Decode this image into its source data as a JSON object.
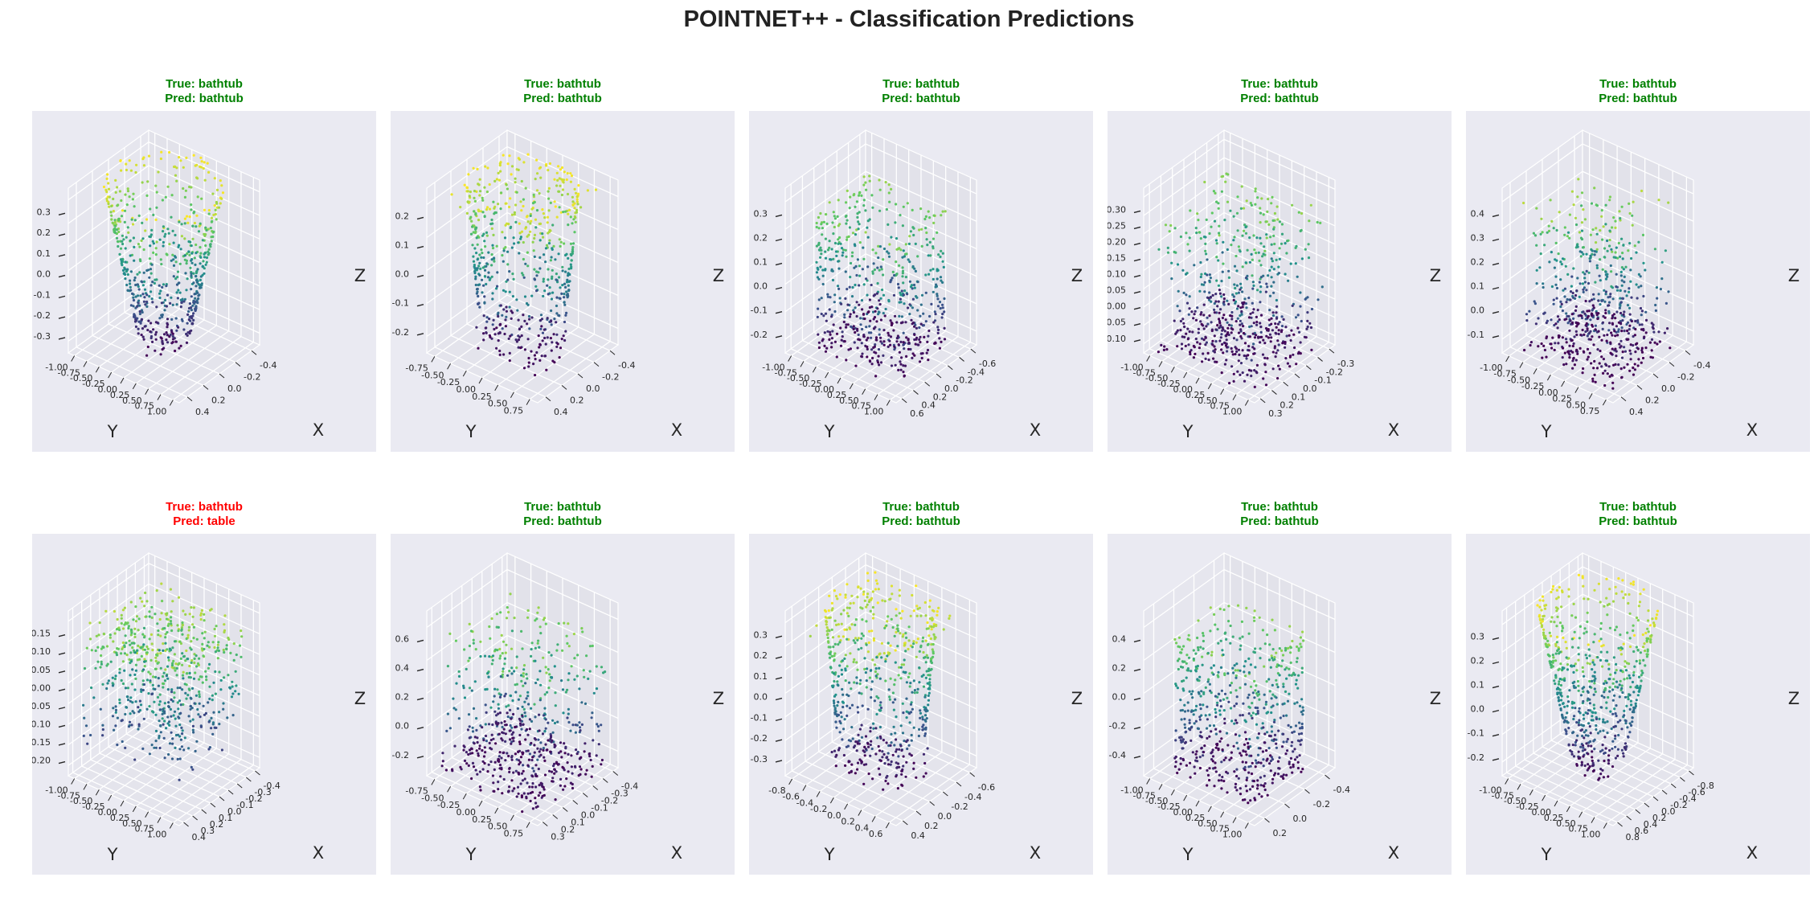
{
  "figure": {
    "title": "POINTNET++ - Classification Predictions",
    "colors": {
      "correct": "#008000",
      "wrong": "#ff0000",
      "pane": "#eaeaf2",
      "colormap": "viridis"
    }
  },
  "chart_data": [
    {
      "type": "scatter3d",
      "true_label": "True: bathtub",
      "pred_label": "Pred: bathtub",
      "correct": true,
      "shape": "bowl",
      "xlabel": "X",
      "ylabel": "Y",
      "zlabel": "Z",
      "x_ticks": [
        "0.4",
        "0.2",
        "0.0",
        "-0.2",
        "-0.4"
      ],
      "y_ticks": [
        "-1.00",
        "-0.75",
        "-0.50",
        "-0.25",
        "0.00",
        "0.25",
        "0.50",
        "0.75",
        "1.00"
      ],
      "z_ticks": [
        "0.3",
        "0.2",
        "0.1",
        "0.0",
        "-0.1",
        "-0.2",
        "-0.3"
      ]
    },
    {
      "type": "scatter3d",
      "true_label": "True: bathtub",
      "pred_label": "Pred: bathtub",
      "correct": true,
      "shape": "tub",
      "xlabel": "X",
      "ylabel": "Y",
      "zlabel": "Z",
      "x_ticks": [
        "0.4",
        "0.2",
        "0.0",
        "-0.2",
        "-0.4"
      ],
      "y_ticks": [
        "-0.75",
        "-0.50",
        "-0.25",
        "0.00",
        "0.25",
        "0.50",
        "0.75"
      ],
      "z_ticks": [
        "0.2",
        "0.1",
        "0.0",
        "-0.1",
        "-0.2"
      ]
    },
    {
      "type": "scatter3d",
      "true_label": "True: bathtub",
      "pred_label": "Pred: bathtub",
      "correct": true,
      "shape": "box",
      "xlabel": "X",
      "ylabel": "Y",
      "zlabel": "Z",
      "x_ticks": [
        "0.6",
        "0.4",
        "0.2",
        "0.0",
        "-0.2",
        "-0.4",
        "-0.6"
      ],
      "y_ticks": [
        "-1.00",
        "-0.75",
        "-0.50",
        "-0.25",
        "0.00",
        "0.25",
        "0.50",
        "0.75",
        "1.00"
      ],
      "z_ticks": [
        "0.3",
        "0.2",
        "0.1",
        "0.0",
        "-0.1",
        "-0.2"
      ]
    },
    {
      "type": "scatter3d",
      "true_label": "True: bathtub",
      "pred_label": "Pred: bathtub",
      "correct": true,
      "shape": "wide",
      "xlabel": "X",
      "ylabel": "Y",
      "zlabel": "Z",
      "x_ticks": [
        "0.3",
        "0.2",
        "0.1",
        "0.0",
        "-0.1",
        "-0.2",
        "-0.3"
      ],
      "y_ticks": [
        "-1.00",
        "-0.75",
        "-0.50",
        "-0.25",
        "0.00",
        "0.25",
        "0.50",
        "0.75",
        "1.00"
      ],
      "z_ticks": [
        "0.30",
        "0.25",
        "0.20",
        "0.15",
        "0.10",
        "0.05",
        "0.00",
        "-0.05",
        "-0.10"
      ]
    },
    {
      "type": "scatter3d",
      "true_label": "True: bathtub",
      "pred_label": "Pred: bathtub",
      "correct": true,
      "shape": "flat",
      "xlabel": "X",
      "ylabel": "Y",
      "zlabel": "Z",
      "x_ticks": [
        "0.4",
        "0.2",
        "0.0",
        "-0.2",
        "-0.4"
      ],
      "y_ticks": [
        "-1.00",
        "-0.75",
        "-0.50",
        "-0.25",
        "0.00",
        "0.25",
        "0.50",
        "0.75"
      ],
      "z_ticks": [
        "0.4",
        "0.3",
        "0.2",
        "0.1",
        "0.0",
        "-0.1"
      ]
    },
    {
      "type": "scatter3d",
      "true_label": "True: bathtub",
      "pred_label": "Pred: table",
      "correct": false,
      "shape": "slab",
      "xlabel": "X",
      "ylabel": "Y",
      "zlabel": "Z",
      "x_ticks": [
        "0.4",
        "0.3",
        "0.2",
        "0.1",
        "0.0",
        "-0.1",
        "-0.2",
        "-0.3",
        "-0.4"
      ],
      "y_ticks": [
        "-1.00",
        "-0.75",
        "-0.50",
        "-0.25",
        "0.00",
        "0.25",
        "0.50",
        "0.75",
        "1.00"
      ],
      "z_ticks": [
        "0.15",
        "0.10",
        "0.05",
        "0.00",
        "-0.05",
        "-0.10",
        "-0.15",
        "-0.20"
      ]
    },
    {
      "type": "scatter3d",
      "true_label": "True: bathtub",
      "pred_label": "Pred: bathtub",
      "correct": true,
      "shape": "wide",
      "xlabel": "X",
      "ylabel": "Y",
      "zlabel": "Z",
      "x_ticks": [
        "0.3",
        "0.2",
        "0.1",
        "0.0",
        "-0.1",
        "-0.2",
        "-0.3",
        "-0.4"
      ],
      "y_ticks": [
        "-0.75",
        "-0.50",
        "-0.25",
        "0.00",
        "0.25",
        "0.50",
        "0.75"
      ],
      "z_ticks": [
        "0.6",
        "0.4",
        "0.2",
        "0.0",
        "-0.2"
      ]
    },
    {
      "type": "scatter3d",
      "true_label": "True: bathtub",
      "pred_label": "Pred: bathtub",
      "correct": true,
      "shape": "tub",
      "xlabel": "X",
      "ylabel": "Y",
      "zlabel": "Z",
      "x_ticks": [
        "0.4",
        "0.2",
        "0.0",
        "-0.2",
        "-0.4",
        "-0.6"
      ],
      "y_ticks": [
        "-0.8",
        "-0.6",
        "-0.4",
        "-0.2",
        "0.0",
        "0.2",
        "0.4",
        "0.6"
      ],
      "z_ticks": [
        "0.3",
        "0.2",
        "0.1",
        "0.0",
        "-0.1",
        "-0.2",
        "-0.3"
      ]
    },
    {
      "type": "scatter3d",
      "true_label": "True: bathtub",
      "pred_label": "Pred: bathtub",
      "correct": true,
      "shape": "box",
      "xlabel": "X",
      "ylabel": "Y",
      "zlabel": "Z",
      "x_ticks": [
        "0.2",
        "0.0",
        "-0.2",
        "-0.4"
      ],
      "y_ticks": [
        "-1.00",
        "-0.75",
        "-0.50",
        "-0.25",
        "0.00",
        "0.25",
        "0.50",
        "0.75",
        "1.00"
      ],
      "z_ticks": [
        "0.4",
        "0.2",
        "0.0",
        "-0.2",
        "-0.4"
      ]
    },
    {
      "type": "scatter3d",
      "true_label": "True: bathtub",
      "pred_label": "Pred: bathtub",
      "correct": true,
      "shape": "bowl",
      "xlabel": "X",
      "ylabel": "Y",
      "zlabel": "Z",
      "x_ticks": [
        "0.8",
        "0.6",
        "0.4",
        "0.2",
        "0.0",
        "-0.2",
        "-0.4",
        "-0.6",
        "-0.8"
      ],
      "y_ticks": [
        "-1.00",
        "-0.75",
        "-0.50",
        "-0.25",
        "0.00",
        "0.25",
        "0.50",
        "0.75",
        "1.00"
      ],
      "z_ticks": [
        "0.3",
        "0.2",
        "0.1",
        "0.0",
        "-0.1",
        "-0.2"
      ]
    }
  ]
}
